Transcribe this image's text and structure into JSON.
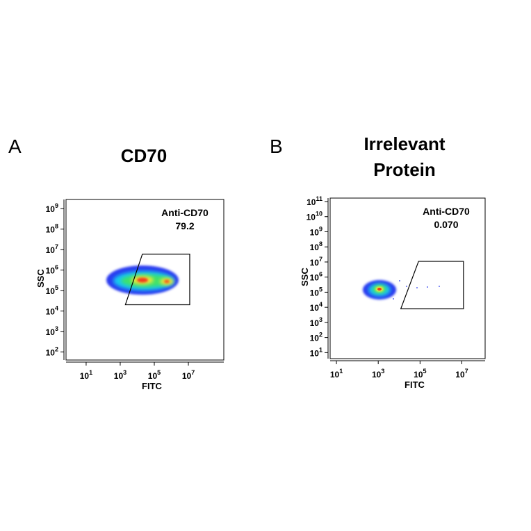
{
  "chart_data": [
    {
      "type": "flow-density",
      "panel_label": "A",
      "title": [
        "CD70"
      ],
      "x_label": "FITC",
      "y_label": "SSC",
      "log_scale": true,
      "xlim": [
        0.66,
        1200000000
      ],
      "ylim": [
        40,
        2800000000
      ],
      "xticks": [
        {
          "value": 10,
          "label": "10",
          "exp": "1"
        },
        {
          "value": 1000,
          "label": "10",
          "exp": "3"
        },
        {
          "value": 100000,
          "label": "10",
          "exp": "5"
        },
        {
          "value": 10000000,
          "label": "10",
          "exp": "7"
        }
      ],
      "yticks": [
        {
          "value": 100,
          "label": "10",
          "exp": "2"
        },
        {
          "value": 1000,
          "label": "10",
          "exp": "3"
        },
        {
          "value": 10000,
          "label": "10",
          "exp": "4"
        },
        {
          "value": 100000,
          "label": "10",
          "exp": "5"
        },
        {
          "value": 1000000,
          "label": "10",
          "exp": "6"
        },
        {
          "value": 10000000,
          "label": "10",
          "exp": "7"
        },
        {
          "value": 100000000,
          "label": "10",
          "exp": "8"
        },
        {
          "value": 1000000000,
          "label": "10",
          "exp": "9"
        }
      ],
      "gate": {
        "name": "Anti-CD70",
        "value": 79.2,
        "color": "#000000",
        "x": [
          20000,
          12000000,
          12000000,
          2000
        ],
        "y": [
          6000000,
          6000000,
          20000,
          20000
        ]
      }
    },
    {
      "type": "flow-density",
      "panel_label": "B",
      "title": [
        "Irrelevant",
        "Protein"
      ],
      "x_label": "FITC",
      "y_label": "SSC",
      "log_scale": true,
      "xlim": [
        5,
        130000000
      ],
      "ylim": [
        4,
        170000000000
      ],
      "xticks": [
        {
          "value": 10,
          "label": "10",
          "exp": "1"
        },
        {
          "value": 1000,
          "label": "10",
          "exp": "3"
        },
        {
          "value": 100000,
          "label": "10",
          "exp": "5"
        },
        {
          "value": 10000000,
          "label": "10",
          "exp": "7"
        }
      ],
      "yticks": [
        {
          "value": 10,
          "label": "10",
          "exp": "1"
        },
        {
          "value": 100,
          "label": "10",
          "exp": "2"
        },
        {
          "value": 1000,
          "label": "10",
          "exp": "3"
        },
        {
          "value": 10000,
          "label": "10",
          "exp": "4"
        },
        {
          "value": 100000,
          "label": "10",
          "exp": "5"
        },
        {
          "value": 1000000,
          "label": "10",
          "exp": "6"
        },
        {
          "value": 10000000,
          "label": "10",
          "exp": "7"
        },
        {
          "value": 100000000,
          "label": "10",
          "exp": "8"
        },
        {
          "value": 1000000000,
          "label": "10",
          "exp": "9"
        },
        {
          "value": 10000000000,
          "label": "10",
          "exp": "10"
        },
        {
          "value": 100000000000,
          "label": "10",
          "exp": "11"
        }
      ],
      "gate": {
        "name": "Anti-CD70",
        "value": 0.07,
        "value_label": "0.070",
        "color": "#000000",
        "x": [
          85000,
          12000000,
          12000000,
          12000
        ],
        "y": [
          11000000,
          11000000,
          8000,
          8000
        ]
      }
    }
  ]
}
